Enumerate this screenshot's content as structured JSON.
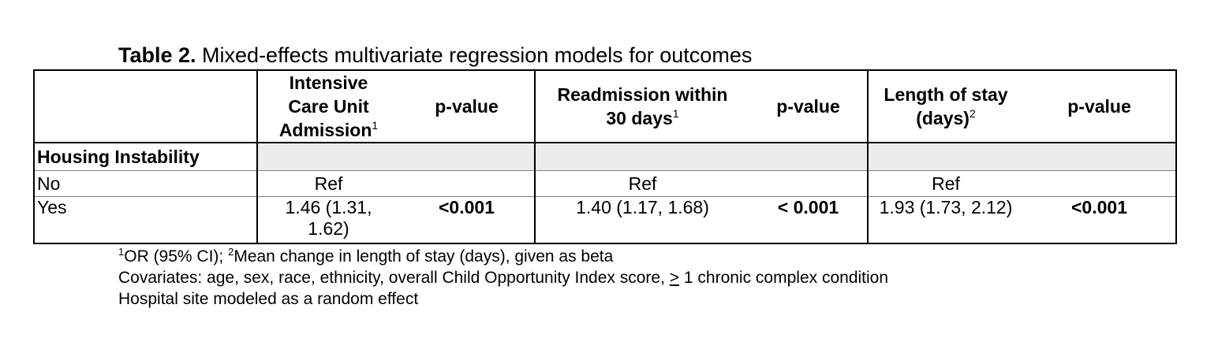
{
  "title": {
    "bold": "Table 2.",
    "text": " Mixed-effects multivariate regression models for outcomes"
  },
  "headers": {
    "icu": {
      "lines": [
        "Intensive",
        "Care Unit",
        "Admission"
      ],
      "sup": "1"
    },
    "p1": "p-value",
    "readmit": {
      "lines": [
        "Readmission within",
        "30 days"
      ],
      "sup": "1"
    },
    "p2": "p-value",
    "los": {
      "lines": [
        "Length of stay",
        "(days)"
      ],
      "sup": "2"
    },
    "p3": "p-value"
  },
  "section": "Housing Instability",
  "rows": [
    {
      "label": "No",
      "icu": "Ref",
      "p1": "",
      "readmit": "Ref",
      "p2": "",
      "los": "Ref",
      "p3": ""
    },
    {
      "label": "Yes",
      "icu_lines": [
        "1.46 (1.31,",
        "1.62)"
      ],
      "p1": "<0.001",
      "readmit": "1.40 (1.17, 1.68)",
      "p2": "< 0.001",
      "los": "1.93 (1.73, 2.12)",
      "p3": "<0.001"
    }
  ],
  "footnotes": {
    "line1": {
      "s1": "1",
      "t1": "OR (95% CI); ",
      "s2": "2",
      "t2": "Mean change in length of stay (days), given as beta"
    },
    "line2": {
      "pre": "Covariates: age, sex, race, ethnicity, overall Child Opportunity Index score, ",
      "ge": ">",
      "post": " 1 chronic complex condition"
    },
    "line3": "Hospital site modeled as a random effect"
  }
}
